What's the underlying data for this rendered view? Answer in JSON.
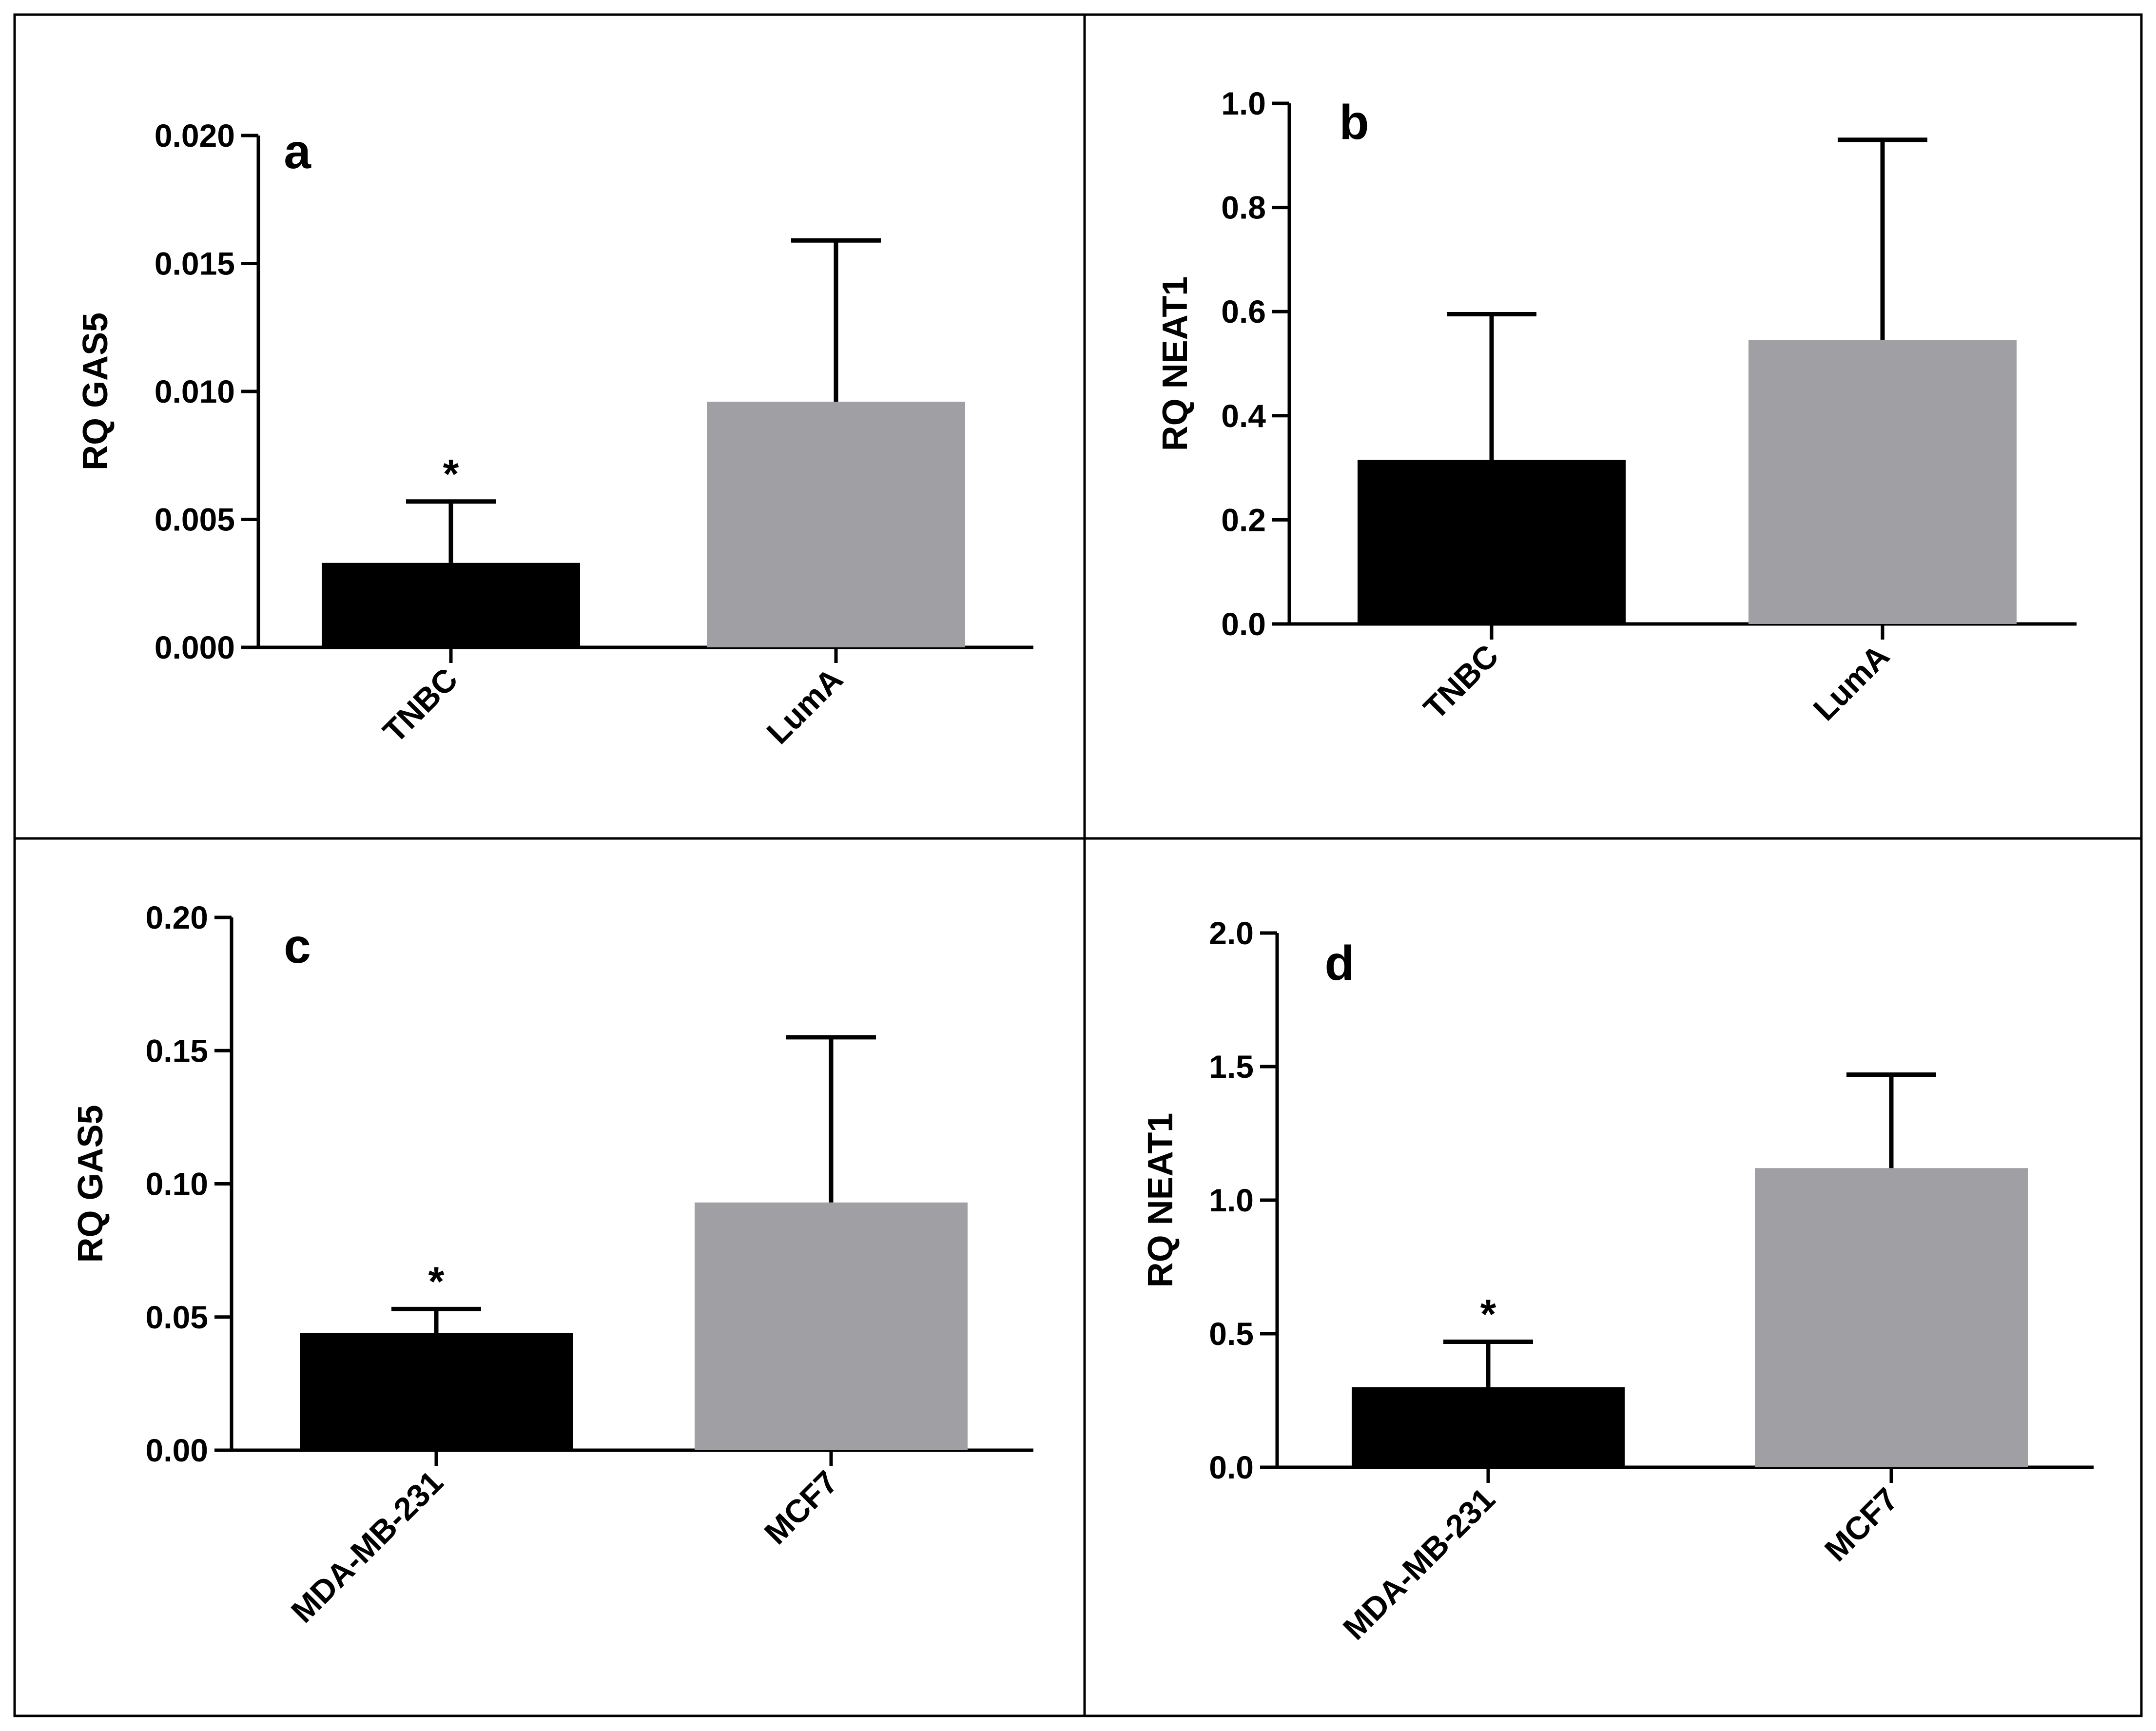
{
  "chart_data": [
    {
      "type": "bar",
      "panel_label": "a",
      "ylabel": "RQ GAS5",
      "categories": [
        "TNBC",
        "LumA"
      ],
      "values": [
        0.0033,
        0.0096
      ],
      "error": [
        0.0024,
        0.0063
      ],
      "colors": [
        "#000000",
        "#a0a0a4"
      ],
      "significance": [
        "*",
        ""
      ],
      "ylim": [
        0,
        0.02
      ],
      "yticks": [
        "0.000",
        "0.005",
        "0.010",
        "0.015",
        "0.020"
      ]
    },
    {
      "type": "bar",
      "panel_label": "b",
      "ylabel": "RQ NEAT1",
      "categories": [
        "TNBC",
        "LumA"
      ],
      "values": [
        0.315,
        0.545
      ],
      "error": [
        0.28,
        0.385
      ],
      "colors": [
        "#000000",
        "#a0a0a4"
      ],
      "significance": [
        "",
        ""
      ],
      "ylim": [
        0,
        1.0
      ],
      "yticks": [
        "0.0",
        "0.2",
        "0.4",
        "0.6",
        "0.8",
        "1.0"
      ]
    },
    {
      "type": "bar",
      "panel_label": "c",
      "ylabel": "RQ GAS5",
      "categories": [
        "MDA-MB-231",
        "MCF7"
      ],
      "values": [
        0.044,
        0.093
      ],
      "error": [
        0.009,
        0.062
      ],
      "colors": [
        "#000000",
        "#a0a0a4"
      ],
      "significance": [
        "*",
        ""
      ],
      "ylim": [
        0,
        0.2
      ],
      "yticks": [
        "0.00",
        "0.05",
        "0.10",
        "0.15",
        "0.20"
      ]
    },
    {
      "type": "bar",
      "panel_label": "d",
      "ylabel": "RQ NEAT1",
      "categories": [
        "MDA-MB-231",
        "MCF7"
      ],
      "values": [
        0.3,
        1.12
      ],
      "error": [
        0.17,
        0.35
      ],
      "colors": [
        "#000000",
        "#a0a0a4"
      ],
      "significance": [
        "*",
        ""
      ],
      "ylim": [
        0,
        2.0
      ],
      "yticks": [
        "0.0",
        "0.5",
        "1.0",
        "1.5",
        "2.0"
      ]
    }
  ]
}
